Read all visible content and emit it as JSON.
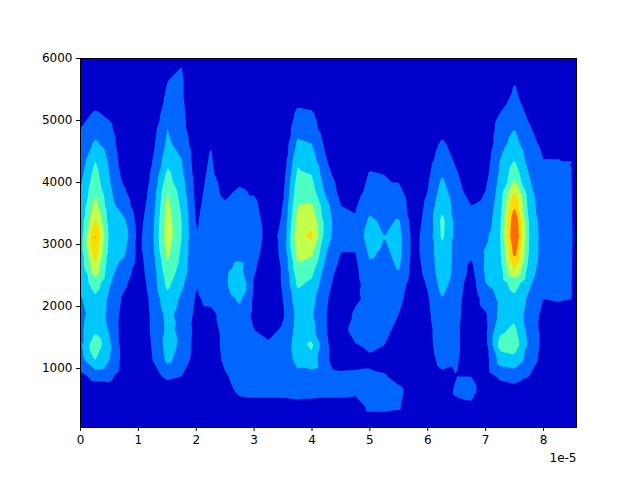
{
  "chart_data": {
    "type": "contour",
    "x": [
      0,
      2.5e-06,
      5e-06,
      7.5e-06,
      1e-05,
      1.25e-05,
      1.5e-05,
      1.75e-05,
      2e-05,
      2.25e-05,
      2.5e-05,
      2.75e-05,
      3e-05,
      3.25e-05,
      3.5e-05,
      3.75e-05,
      4e-05,
      4.25e-05,
      4.5e-05,
      4.75e-05,
      5e-05,
      5.25e-05,
      5.5e-05,
      5.75e-05,
      6e-05,
      6.25e-05,
      6.5e-05,
      6.75e-05,
      7e-05,
      7.25e-05,
      7.5e-05,
      7.75e-05,
      8e-05,
      8.25e-05,
      8.5e-05
    ],
    "y": [
      125,
      375,
      625,
      875,
      1125,
      1375,
      1625,
      1875,
      2125,
      2375,
      2625,
      2875,
      3125,
      3375,
      3625,
      3875,
      4125,
      4375,
      4625,
      4875,
      5125,
      5375,
      5625,
      5875
    ],
    "z": [
      [
        0.6,
        0.4,
        0.5,
        0.8,
        1.5,
        1.8,
        1.8,
        1.7,
        1.9,
        2.2,
        2.4,
        2.5,
        2.5,
        2.4,
        2.2,
        2.0,
        1.7,
        1.4,
        1.2,
        1.0,
        0.6,
        0.3,
        0.3,
        0.3
      ],
      [
        0.6,
        0.5,
        0.6,
        1.2,
        3.0,
        3.8,
        2.8,
        2.5,
        2.8,
        3.6,
        4.8,
        5.6,
        6.2,
        5.2,
        4.4,
        3.8,
        3.4,
        3.0,
        2.2,
        1.5,
        1.1,
        0.5,
        0.3,
        0.3
      ],
      [
        0.6,
        0.6,
        0.7,
        1.2,
        2.0,
        2.2,
        1.9,
        1.8,
        1.8,
        2.1,
        2.4,
        2.7,
        2.8,
        2.6,
        2.4,
        2.2,
        2.0,
        1.8,
        1.5,
        1.2,
        0.8,
        0.3,
        0.3,
        0.3
      ],
      [
        0.5,
        0.3,
        0.3,
        0.5,
        0.6,
        0.5,
        0.5,
        0.6,
        0.8,
        1.2,
        1.6,
        2.2,
        2.6,
        2.2,
        1.5,
        1.1,
        0.7,
        0.4,
        0.3,
        0.3,
        0.3,
        0.3,
        0.3,
        0.3
      ],
      [
        0.5,
        0.3,
        0.3,
        0.3,
        0.3,
        0.3,
        0.3,
        0.3,
        0.3,
        0.4,
        0.6,
        0.7,
        0.7,
        0.6,
        0.4,
        0.3,
        0.3,
        0.3,
        0.3,
        0.3,
        0.3,
        0.3,
        0.3,
        0.3
      ],
      [
        0.5,
        0.3,
        0.3,
        0.7,
        1.0,
        1.1,
        1.2,
        1.2,
        1.3,
        1.5,
        1.6,
        1.8,
        1.9,
        1.8,
        1.6,
        1.4,
        1.2,
        1.0,
        0.8,
        0.6,
        0.4,
        0.3,
        0.3,
        0.3
      ],
      [
        0.5,
        0.3,
        0.4,
        1.2,
        2.2,
        2.4,
        2.2,
        2.3,
        2.7,
        3.3,
        3.8,
        4.3,
        4.6,
        4.5,
        4.3,
        4.0,
        3.3,
        2.6,
        2.2,
        2.0,
        1.5,
        1.2,
        1.0,
        0.6
      ],
      [
        0.5,
        0.3,
        0.3,
        1.0,
        1.6,
        1.8,
        1.8,
        1.6,
        1.8,
        2.2,
        2.6,
        2.8,
        3.0,
        3.0,
        2.8,
        2.5,
        2.2,
        2.0,
        1.6,
        1.3,
        1.2,
        1.1,
        1.1,
        1.0
      ],
      [
        0.5,
        0.3,
        0.3,
        0.4,
        0.5,
        0.6,
        0.7,
        0.8,
        0.9,
        1.0,
        1.1,
        1.1,
        1.0,
        0.9,
        0.8,
        0.7,
        0.6,
        0.5,
        0.4,
        0.3,
        0.3,
        0.3,
        0.3,
        0.3
      ],
      [
        0.5,
        0.3,
        0.3,
        0.3,
        0.4,
        0.5,
        0.6,
        0.8,
        1.2,
        1.4,
        1.5,
        1.5,
        1.5,
        1.5,
        1.4,
        1.3,
        1.2,
        1.1,
        1.0,
        0.6,
        0.3,
        0.3,
        0.3,
        0.3
      ],
      [
        0.5,
        0.4,
        0.6,
        0.9,
        1.2,
        1.3,
        1.3,
        1.3,
        1.5,
        1.8,
        1.7,
        1.5,
        1.4,
        1.3,
        1.1,
        0.8,
        0.5,
        0.3,
        0.3,
        0.3,
        0.3,
        0.3,
        0.3,
        0.3
      ],
      [
        0.5,
        0.5,
        1.2,
        1.3,
        1.2,
        1.3,
        1.3,
        1.5,
        2.2,
        3.0,
        2.3,
        1.6,
        1.4,
        1.3,
        1.2,
        1.1,
        0.7,
        0.4,
        0.3,
        0.3,
        0.3,
        0.3,
        0.3,
        0.3
      ],
      [
        0.5,
        0.5,
        1.3,
        1.3,
        1.1,
        1.2,
        1.0,
        0.8,
        0.8,
        0.9,
        1.1,
        1.3,
        1.4,
        1.4,
        1.2,
        0.9,
        0.5,
        0.3,
        0.3,
        0.3,
        0.3,
        0.3,
        0.3,
        0.3
      ],
      [
        0.5,
        0.5,
        1.3,
        1.3,
        1.0,
        1.1,
        0.8,
        0.5,
        0.4,
        0.4,
        0.5,
        0.6,
        0.7,
        0.6,
        0.5,
        0.4,
        0.3,
        0.3,
        0.3,
        0.3,
        0.3,
        0.3,
        0.3,
        0.3
      ],
      [
        0.5,
        0.5,
        1.3,
        1.3,
        1.1,
        1.2,
        1.1,
        0.9,
        1.0,
        1.1,
        1.1,
        1.2,
        1.2,
        1.1,
        1.0,
        0.8,
        0.6,
        0.4,
        0.3,
        0.3,
        0.3,
        0.3,
        0.3,
        0.3
      ],
      [
        0.6,
        0.6,
        1.4,
        1.6,
        2.4,
        2.6,
        2.4,
        2.3,
        2.6,
        3.2,
        3.8,
        4.4,
        4.8,
        4.5,
        4.0,
        3.6,
        3.2,
        2.8,
        2.2,
        1.6,
        1.2,
        0.6,
        0.3,
        0.3
      ],
      [
        0.6,
        0.5,
        1.4,
        1.5,
        2.6,
        3.2,
        2.3,
        2.1,
        2.3,
        2.8,
        3.4,
        4.2,
        5.2,
        4.8,
        4.1,
        3.4,
        3.0,
        2.4,
        2.0,
        1.4,
        1.1,
        0.5,
        0.3,
        0.3
      ],
      [
        0.5,
        0.5,
        1.3,
        1.3,
        1.1,
        1.1,
        1.0,
        1.0,
        1.1,
        1.3,
        1.6,
        2.0,
        2.4,
        2.5,
        2.3,
        1.7,
        1.3,
        1.0,
        0.7,
        0.4,
        0.3,
        0.3,
        0.3,
        0.3
      ],
      [
        0.5,
        0.5,
        1.3,
        1.2,
        0.6,
        0.5,
        0.4,
        0.4,
        0.4,
        0.5,
        0.7,
        1.0,
        1.2,
        1.2,
        1.0,
        0.7,
        0.5,
        0.4,
        0.3,
        0.3,
        0.3,
        0.3,
        0.3,
        0.3
      ],
      [
        0.5,
        0.5,
        1.2,
        1.2,
        0.7,
        0.9,
        1.7,
        1.2,
        0.8,
        0.7,
        0.8,
        1.0,
        1.2,
        1.1,
        0.9,
        0.6,
        0.4,
        0.3,
        0.3,
        0.3,
        0.3,
        0.3,
        0.3,
        0.3
      ],
      [
        0.5,
        1.2,
        1.4,
        1.2,
        0.8,
        1.2,
        1.3,
        1.2,
        1.3,
        1.5,
        1.8,
        2.2,
        2.6,
        2.2,
        1.7,
        1.3,
        1.1,
        0.7,
        0.3,
        0.3,
        0.3,
        0.3,
        0.3,
        0.3
      ],
      [
        0.5,
        1.2,
        1.4,
        1.1,
        0.6,
        1.0,
        1.2,
        1.2,
        1.2,
        1.4,
        1.6,
        1.8,
        2.0,
        1.8,
        1.5,
        1.2,
        1.0,
        0.6,
        0.3,
        0.3,
        0.3,
        0.3,
        0.3,
        0.3
      ],
      [
        0.5,
        1.1,
        1.3,
        0.6,
        0.4,
        0.6,
        0.8,
        1.0,
        1.3,
        1.6,
        2.1,
        2.3,
        2.3,
        2.1,
        1.6,
        1.2,
        0.8,
        0.5,
        0.3,
        0.3,
        0.3,
        0.3,
        0.3,
        0.3
      ],
      [
        0.5,
        0.4,
        0.4,
        0.3,
        0.3,
        0.3,
        0.3,
        0.3,
        0.4,
        0.5,
        0.6,
        0.7,
        0.7,
        0.6,
        0.5,
        0.4,
        0.3,
        0.3,
        0.3,
        0.3,
        0.3,
        0.3,
        0.3,
        0.3
      ],
      [
        0.5,
        0.3,
        0.3,
        0.4,
        0.6,
        0.7,
        0.7,
        0.8,
        0.9,
        1.1,
        1.3,
        1.4,
        1.4,
        1.3,
        1.2,
        1.0,
        0.8,
        0.6,
        0.4,
        0.3,
        0.3,
        0.3,
        0.3,
        0.3
      ],
      [
        0.5,
        0.3,
        0.5,
        0.8,
        1.3,
        1.5,
        1.6,
        1.8,
        2.0,
        2.4,
        2.7,
        2.8,
        3.2,
        3.3,
        2.8,
        2.4,
        2.0,
        1.5,
        1.2,
        0.6,
        0.3,
        0.3,
        0.3,
        0.3
      ],
      [
        0.5,
        0.6,
        1.2,
        1.0,
        1.1,
        1.2,
        1.2,
        1.3,
        1.4,
        1.5,
        1.6,
        1.6,
        1.6,
        1.6,
        1.5,
        1.3,
        1.1,
        0.8,
        0.5,
        0.3,
        0.3,
        0.3,
        0.3,
        0.3
      ],
      [
        0.5,
        0.8,
        1.3,
        1.0,
        0.4,
        0.3,
        0.3,
        0.3,
        0.3,
        0.5,
        0.8,
        1.2,
        1.3,
        1.2,
        1.0,
        0.6,
        0.4,
        0.3,
        0.3,
        0.3,
        0.3,
        0.3,
        0.3,
        0.3
      ],
      [
        0.5,
        0.4,
        0.5,
        0.5,
        0.6,
        0.7,
        0.8,
        0.9,
        1.5,
        2.0,
        2.2,
        2.1,
        1.8,
        1.4,
        1.2,
        1.0,
        0.7,
        0.5,
        0.3,
        0.3,
        0.3,
        0.3,
        0.3,
        0.3
      ],
      [
        0.5,
        0.4,
        0.5,
        1.2,
        2.4,
        3.4,
        2.8,
        2.3,
        2.2,
        2.4,
        2.6,
        2.8,
        2.9,
        2.8,
        2.6,
        2.4,
        2.2,
        2.0,
        1.6,
        1.4,
        1.0,
        0.6,
        0.3,
        0.3
      ],
      [
        0.6,
        0.5,
        0.6,
        1.4,
        2.6,
        3.6,
        3.2,
        2.8,
        2.8,
        3.5,
        5.2,
        6.5,
        7.3,
        7.0,
        6.0,
        5.0,
        3.6,
        3.0,
        2.4,
        2.0,
        1.5,
        1.2,
        1.0,
        0.5
      ],
      [
        0.5,
        0.4,
        0.5,
        1.0,
        1.6,
        1.8,
        1.6,
        1.5,
        1.8,
        2.2,
        2.6,
        2.9,
        3.0,
        2.9,
        2.6,
        2.3,
        2.0,
        1.6,
        1.3,
        1.1,
        0.8,
        0.5,
        0.3,
        0.3
      ],
      [
        0.5,
        0.3,
        0.3,
        0.5,
        0.6,
        0.7,
        0.7,
        0.8,
        1.0,
        1.2,
        1.4,
        1.5,
        1.5,
        1.4,
        1.3,
        1.2,
        1.1,
        1.0,
        0.8,
        0.5,
        0.3,
        0.3,
        0.3,
        0.3
      ],
      [
        0.5,
        0.3,
        0.3,
        0.3,
        0.3,
        0.3,
        0.4,
        0.6,
        1.1,
        1.2,
        1.3,
        1.4,
        1.6,
        1.4,
        1.3,
        1.2,
        1.1,
        1.0,
        0.7,
        0.4,
        0.3,
        0.3,
        0.3,
        0.3
      ],
      [
        0.5,
        0.3,
        0.3,
        0.3,
        0.3,
        0.3,
        0.4,
        0.6,
        1.0,
        1.1,
        1.2,
        1.3,
        1.8,
        1.3,
        1.2,
        1.1,
        1.0,
        1.0,
        0.9,
        0.7,
        0.4,
        0.3,
        0.3,
        0.3
      ]
    ],
    "levels": [
      0,
      1,
      2,
      3,
      4,
      5,
      6,
      7,
      8
    ],
    "colors": [
      "#0000cd",
      "#0066ff",
      "#00c8ff",
      "#4dffc3",
      "#c3ff4d",
      "#ffdc00",
      "#ff6a00",
      "#d40000"
    ],
    "xlim": [
      0,
      8.57e-05
    ],
    "ylim": [
      50,
      6000
    ],
    "xticks": [
      0,
      {
        "value": 1e-05,
        "label": "1"
      },
      {
        "value": 2e-05,
        "label": "2"
      },
      {
        "value": 3e-05,
        "label": "3"
      },
      {
        "value": 4e-05,
        "label": "4"
      },
      {
        "value": 5e-05,
        "label": "5"
      },
      {
        "value": 6e-05,
        "label": "6"
      },
      {
        "value": 7e-05,
        "label": "7"
      },
      {
        "value": 8e-05,
        "label": "8"
      }
    ],
    "yticks": [
      1000,
      2000,
      3000,
      4000,
      5000,
      6000
    ],
    "annotations": [
      "1e-5"
    ]
  }
}
